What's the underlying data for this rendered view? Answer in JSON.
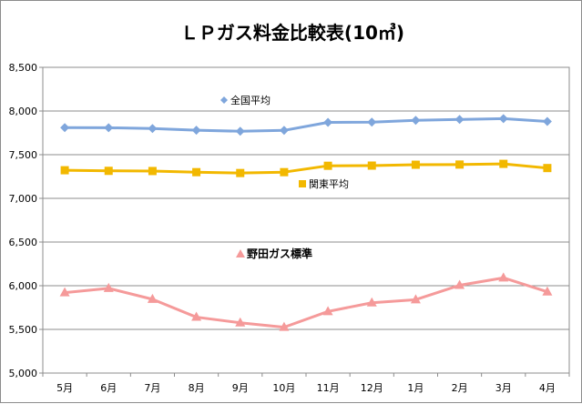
{
  "chart_data": {
    "type": "line",
    "title": "ＬＰガス料金比較表(10㎥)",
    "xlabel": "",
    "ylabel": "",
    "categories": [
      "5月",
      "6月",
      "7月",
      "8月",
      "9月",
      "10月",
      "11月",
      "12月",
      "1月",
      "2月",
      "3月",
      "4月"
    ],
    "ylim": [
      5000,
      8500
    ],
    "yticks": [
      "5,000",
      "5,500",
      "6,000",
      "6,500",
      "7,000",
      "7,500",
      "8,000",
      "8,500"
    ],
    "ytick_values": [
      5000,
      5500,
      6000,
      6500,
      7000,
      7500,
      8000,
      8500
    ],
    "grid": true,
    "series": [
      {
        "name": "全国平均",
        "marker": "diamond",
        "color": "#7fa6dc",
        "values": [
          7810,
          7808,
          7800,
          7780,
          7768,
          7778,
          7870,
          7873,
          7893,
          7903,
          7913,
          7880
        ]
      },
      {
        "name": "関東平均",
        "marker": "square",
        "color": "#f2b800",
        "values": [
          7322,
          7315,
          7313,
          7300,
          7290,
          7300,
          7373,
          7375,
          7385,
          7387,
          7395,
          7347
        ]
      },
      {
        "name": "野田ガス標準",
        "marker": "triangle",
        "color": "#f59a9a",
        "values": [
          5920,
          5970,
          5845,
          5640,
          5575,
          5525,
          5705,
          5805,
          5840,
          6005,
          6090,
          5930
        ]
      }
    ]
  }
}
